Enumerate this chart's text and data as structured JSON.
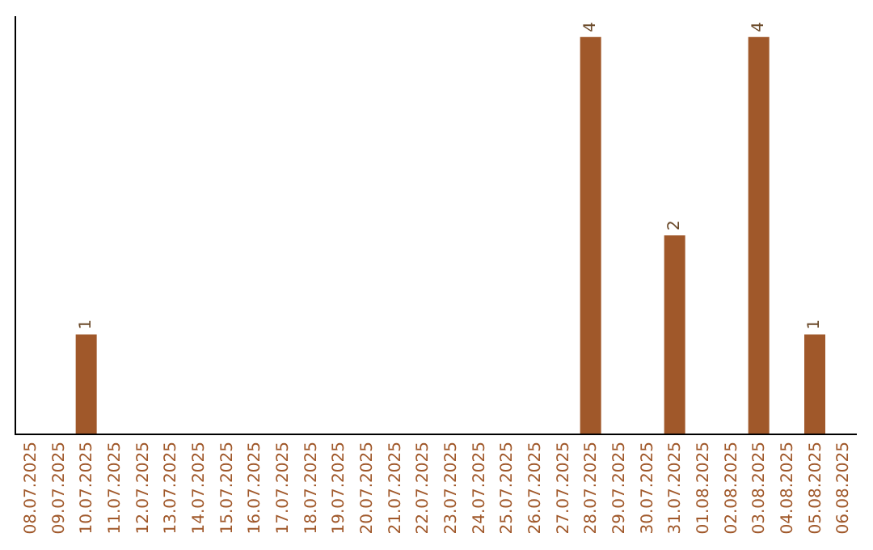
{
  "chart_data": {
    "type": "bar",
    "categories": [
      "08.07.2025",
      "09.07.2025",
      "10.07.2025",
      "11.07.2025",
      "12.07.2025",
      "13.07.2025",
      "14.07.2025",
      "15.07.2025",
      "16.07.2025",
      "17.07.2025",
      "18.07.2025",
      "19.07.2025",
      "20.07.2025",
      "21.07.2025",
      "22.07.2025",
      "23.07.2025",
      "24.07.2025",
      "25.07.2025",
      "26.07.2025",
      "27.07.2025",
      "28.07.2025",
      "29.07.2025",
      "30.07.2025",
      "31.07.2025",
      "01.08.2025",
      "02.08.2025",
      "03.08.2025",
      "04.08.2025",
      "05.08.2025",
      "06.08.2025"
    ],
    "values": [
      0,
      0,
      1,
      0,
      0,
      0,
      0,
      0,
      0,
      0,
      0,
      0,
      0,
      0,
      0,
      0,
      0,
      0,
      0,
      0,
      4,
      0,
      0,
      2,
      0,
      0,
      4,
      0,
      1,
      0
    ],
    "value_labels": [
      null,
      null,
      "1",
      null,
      null,
      null,
      null,
      null,
      null,
      null,
      null,
      null,
      null,
      null,
      null,
      null,
      null,
      null,
      null,
      null,
      "4",
      null,
      null,
      "2",
      null,
      null,
      "4",
      null,
      "1",
      null
    ],
    "color": "#a0582a",
    "legend": false,
    "tick_labels": "x"
  }
}
